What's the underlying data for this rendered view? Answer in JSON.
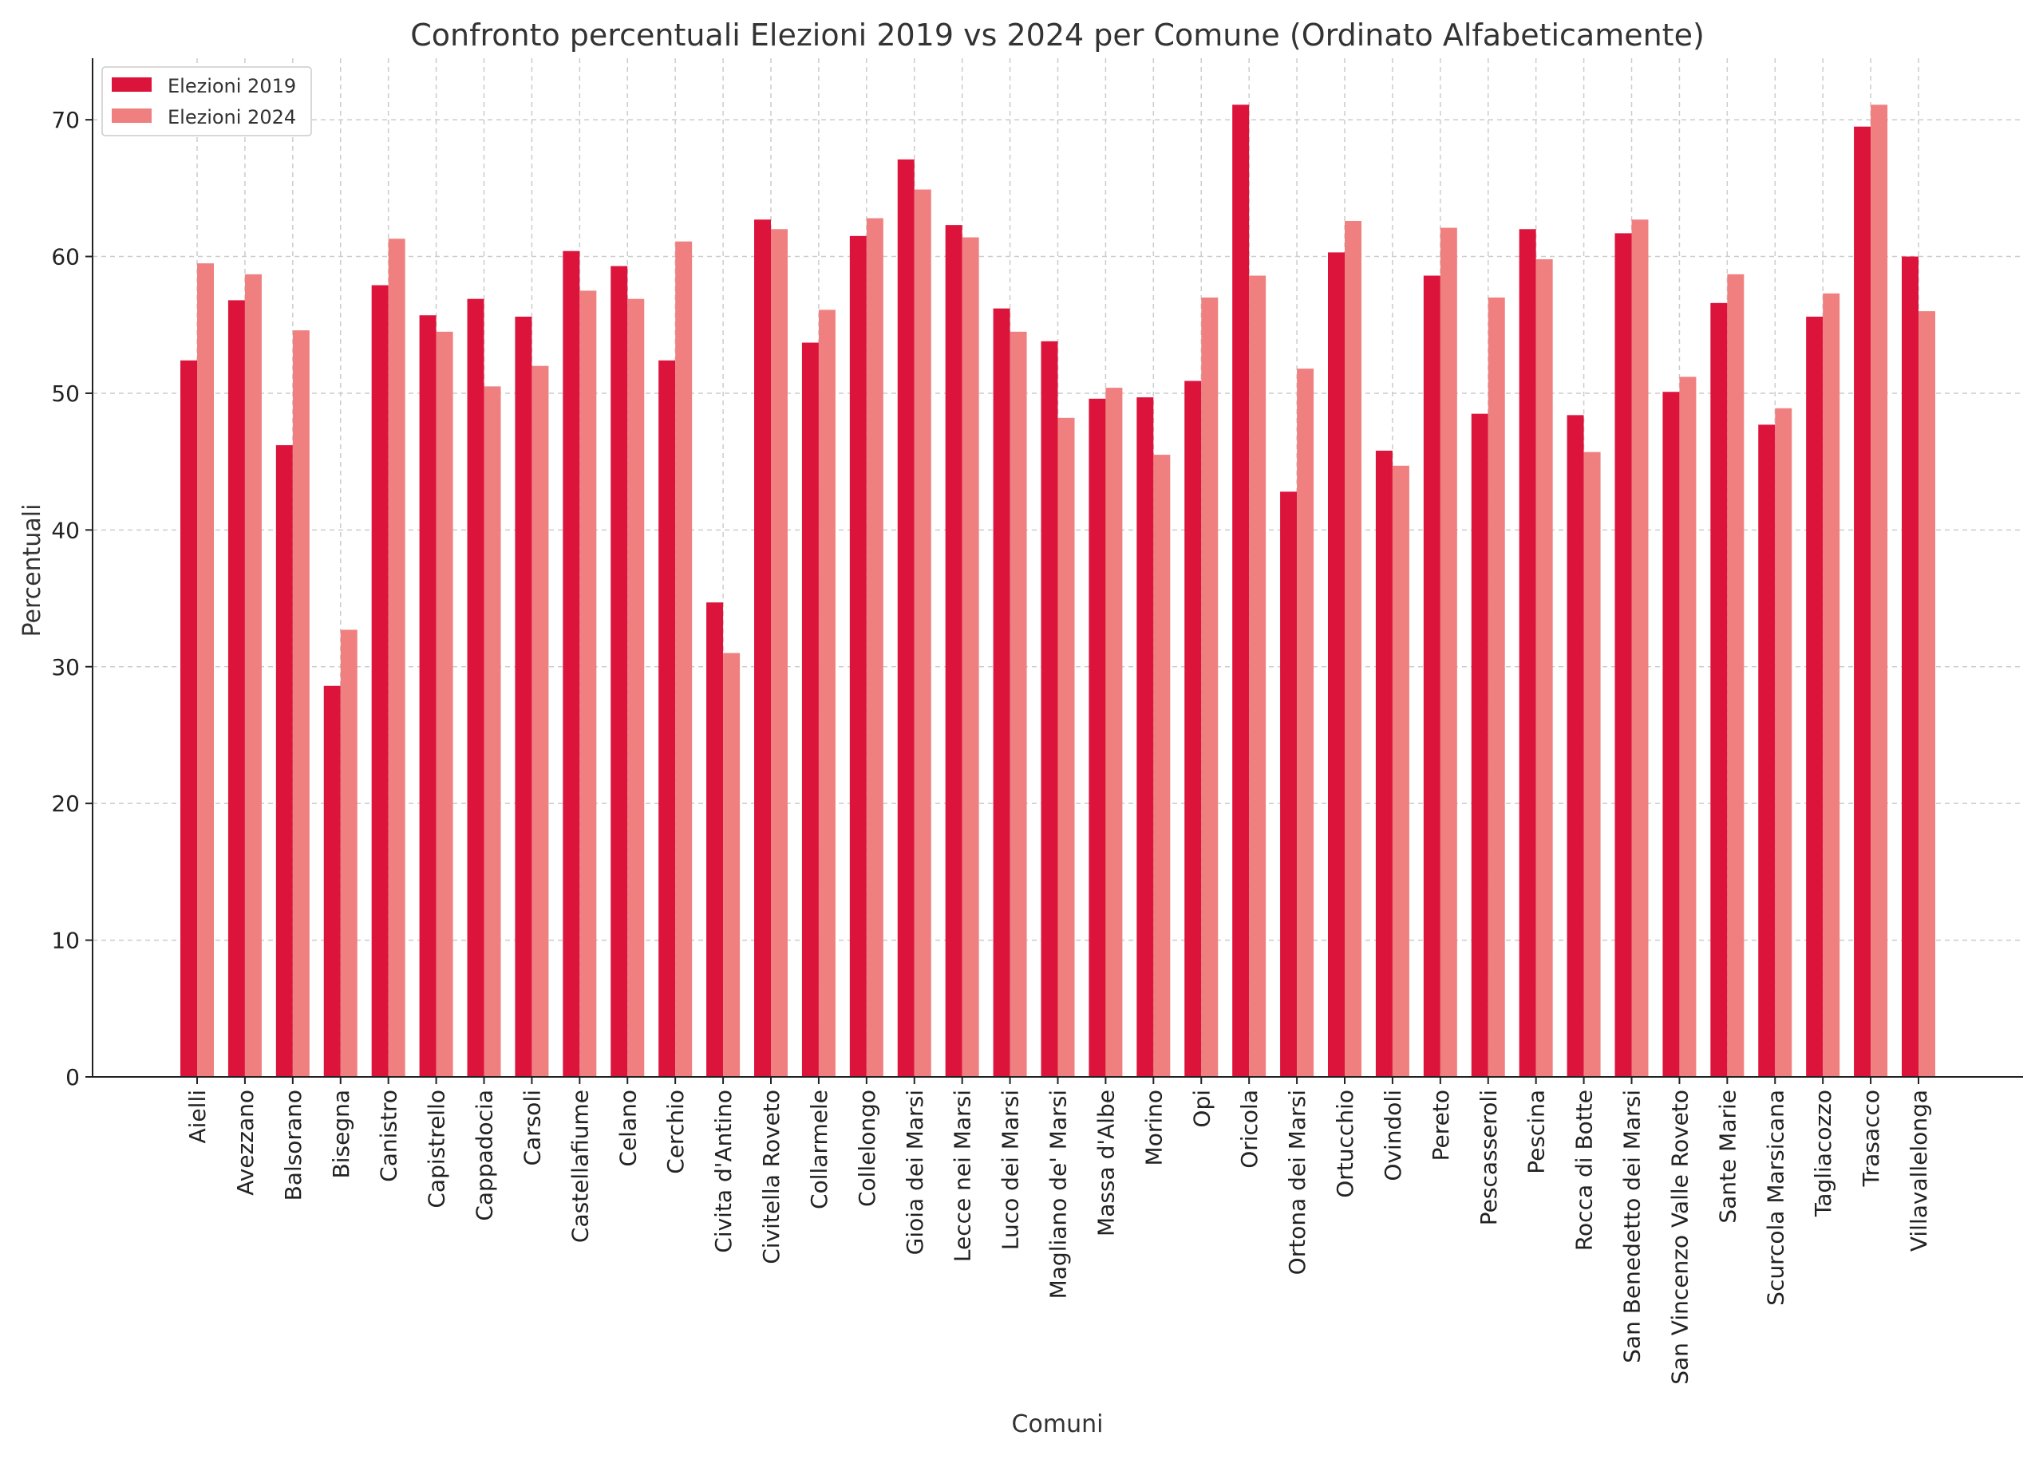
{
  "chart_data": {
    "type": "bar",
    "title": "Confronto percentuali Elezioni 2019 vs 2024 per Comune (Ordinato Alfabeticamente)",
    "xlabel": "Comuni",
    "ylabel": "Percentuali",
    "ylim": [
      0,
      74.5
    ],
    "yticks": [
      0,
      10,
      20,
      30,
      40,
      50,
      60,
      70
    ],
    "grid": true,
    "legend_position": "top-left",
    "categories": [
      "Aielli",
      "Avezzano",
      "Balsorano",
      "Bisegna",
      "Canistro",
      "Capistrello",
      "Cappadocia",
      "Carsoli",
      "Castellafiume",
      "Celano",
      "Cerchio",
      "Civita d'Antino",
      "Civitella Roveto",
      "Collarmele",
      "Collelongo",
      "Gioia dei Marsi",
      "Lecce nei Marsi",
      "Luco dei Marsi",
      "Magliano de' Marsi",
      "Massa d'Albe",
      "Morino",
      "Opi",
      "Oricola",
      "Ortona dei Marsi",
      "Ortucchio",
      "Ovindoli",
      "Pereto",
      "Pescasseroli",
      "Pescina",
      "Rocca di Botte",
      "San Benedetto dei Marsi",
      "San Vincenzo Valle Roveto",
      "Sante Marie",
      "Scurcola Marsicana",
      "Tagliacozzo",
      "Trasacco",
      "Villavallelonga"
    ],
    "series": [
      {
        "name": "Elezioni 2019",
        "color": "#dc143c",
        "values": [
          52.4,
          56.8,
          46.2,
          28.6,
          57.9,
          55.7,
          56.9,
          55.6,
          60.4,
          59.3,
          52.4,
          34.7,
          62.7,
          53.7,
          61.5,
          67.1,
          62.3,
          56.2,
          53.8,
          49.6,
          49.7,
          50.9,
          71.1,
          42.8,
          60.3,
          45.8,
          58.6,
          48.5,
          62.0,
          48.4,
          61.7,
          50.1,
          56.6,
          47.7,
          55.6,
          69.5,
          60.0
        ]
      },
      {
        "name": "Elezioni 2024",
        "color": "#f08080",
        "values": [
          59.5,
          58.7,
          54.6,
          32.7,
          61.3,
          54.5,
          50.5,
          52.0,
          57.5,
          56.9,
          61.1,
          31.0,
          62.0,
          56.1,
          62.8,
          64.9,
          61.4,
          54.5,
          48.2,
          50.4,
          45.5,
          57.0,
          58.6,
          51.8,
          62.6,
          44.7,
          62.1,
          57.0,
          59.8,
          45.7,
          62.7,
          51.2,
          58.7,
          48.9,
          57.3,
          71.1,
          56.0
        ]
      }
    ]
  }
}
